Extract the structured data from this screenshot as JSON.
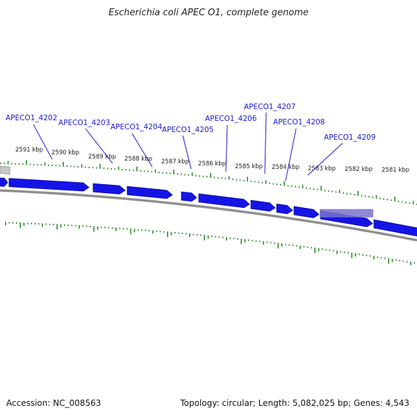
{
  "title": "Escherichia coli APEC O1, complete genome",
  "accession": "Accession: NC_008563",
  "summary": "Topology: circular; Length: 5,082,025 bp; Genes: 4,543",
  "colors": {
    "gene": "#1414e6",
    "gene_edge": "#0a0a99",
    "highlight": "#7b73c9",
    "backbone": "#8f8f8f",
    "ticks": "#2a8a2a",
    "labels": "#1a1acc"
  },
  "scale": {
    "unit": "kbp",
    "labels": [
      "2591 kbp",
      "2590 kbp",
      "2589 kbp",
      "2588 kbp",
      "2587 kbp",
      "2586 kbp",
      "2585 kbp",
      "2584 kbp",
      "2583 kbp",
      "2582 kbp",
      "2581 kbp"
    ]
  },
  "genes": [
    {
      "label": "APECO1_4202"
    },
    {
      "label": "APECO1_4203"
    },
    {
      "label": "APECO1_4204"
    },
    {
      "label": "APECO1_4205"
    },
    {
      "label": "APECO1_4206"
    },
    {
      "label": "APECO1_4207"
    },
    {
      "label": "APECO1_4208"
    },
    {
      "label": "APECO1_4209"
    }
  ]
}
